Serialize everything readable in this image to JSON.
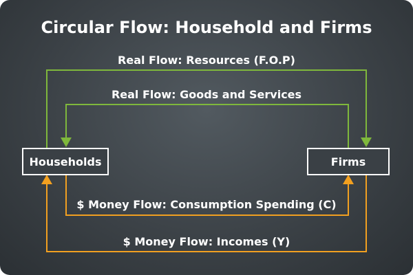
{
  "title": "Circular Flow: Household and Firms",
  "nodes": {
    "households": "Households",
    "firms": "Firms"
  },
  "flows": {
    "resources": "Real Flow: Resources (F.O.P)",
    "goods": "Real Flow: Goods and Services",
    "consumption": "$ Money Flow: Consumption Spending (C)",
    "incomes": "$ Money Flow: Incomes (Y)"
  },
  "colors": {
    "background": "#3c4247",
    "real_flow": "#7fb83c",
    "money_flow": "#f2a020",
    "box_fill": "#ffffff",
    "box_text": "#1f3f5f",
    "text": "#ffffff"
  }
}
